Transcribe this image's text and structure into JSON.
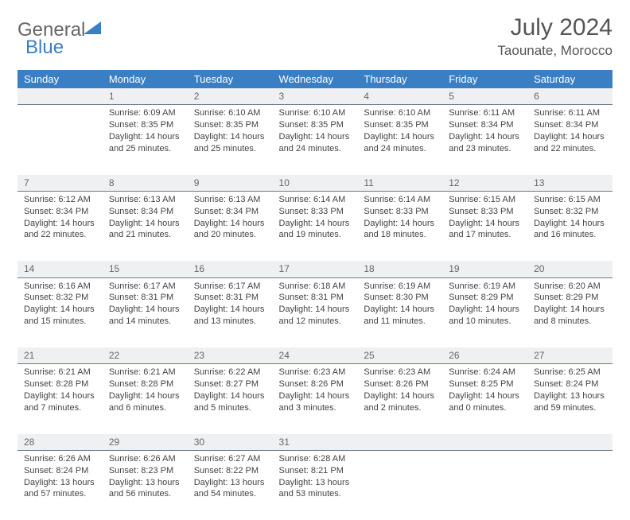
{
  "brand": {
    "part1": "General",
    "part2": "Blue",
    "accent_color": "#3a7fc4"
  },
  "title": "July 2024",
  "location": "Taounate, Morocco",
  "day_headers": [
    "Sunday",
    "Monday",
    "Tuesday",
    "Wednesday",
    "Thursday",
    "Friday",
    "Saturday"
  ],
  "colors": {
    "header_bg": "#3a7fc4",
    "header_text": "#ffffff",
    "daynum_bg": "#eef0f2",
    "daynum_border": "#6b7a8a",
    "text": "#444444",
    "page_bg": "#ffffff"
  },
  "typography": {
    "title_fontsize": 30,
    "location_fontsize": 17,
    "header_fontsize": 13,
    "daynum_fontsize": 12,
    "cell_fontsize": 11
  },
  "weeks": [
    [
      null,
      {
        "n": "1",
        "sunrise": "6:09 AM",
        "sunset": "8:35 PM",
        "daylight": "14 hours and 25 minutes."
      },
      {
        "n": "2",
        "sunrise": "6:10 AM",
        "sunset": "8:35 PM",
        "daylight": "14 hours and 25 minutes."
      },
      {
        "n": "3",
        "sunrise": "6:10 AM",
        "sunset": "8:35 PM",
        "daylight": "14 hours and 24 minutes."
      },
      {
        "n": "4",
        "sunrise": "6:10 AM",
        "sunset": "8:35 PM",
        "daylight": "14 hours and 24 minutes."
      },
      {
        "n": "5",
        "sunrise": "6:11 AM",
        "sunset": "8:34 PM",
        "daylight": "14 hours and 23 minutes."
      },
      {
        "n": "6",
        "sunrise": "6:11 AM",
        "sunset": "8:34 PM",
        "daylight": "14 hours and 22 minutes."
      }
    ],
    [
      {
        "n": "7",
        "sunrise": "6:12 AM",
        "sunset": "8:34 PM",
        "daylight": "14 hours and 22 minutes."
      },
      {
        "n": "8",
        "sunrise": "6:13 AM",
        "sunset": "8:34 PM",
        "daylight": "14 hours and 21 minutes."
      },
      {
        "n": "9",
        "sunrise": "6:13 AM",
        "sunset": "8:34 PM",
        "daylight": "14 hours and 20 minutes."
      },
      {
        "n": "10",
        "sunrise": "6:14 AM",
        "sunset": "8:33 PM",
        "daylight": "14 hours and 19 minutes."
      },
      {
        "n": "11",
        "sunrise": "6:14 AM",
        "sunset": "8:33 PM",
        "daylight": "14 hours and 18 minutes."
      },
      {
        "n": "12",
        "sunrise": "6:15 AM",
        "sunset": "8:33 PM",
        "daylight": "14 hours and 17 minutes."
      },
      {
        "n": "13",
        "sunrise": "6:15 AM",
        "sunset": "8:32 PM",
        "daylight": "14 hours and 16 minutes."
      }
    ],
    [
      {
        "n": "14",
        "sunrise": "6:16 AM",
        "sunset": "8:32 PM",
        "daylight": "14 hours and 15 minutes."
      },
      {
        "n": "15",
        "sunrise": "6:17 AM",
        "sunset": "8:31 PM",
        "daylight": "14 hours and 14 minutes."
      },
      {
        "n": "16",
        "sunrise": "6:17 AM",
        "sunset": "8:31 PM",
        "daylight": "14 hours and 13 minutes."
      },
      {
        "n": "17",
        "sunrise": "6:18 AM",
        "sunset": "8:31 PM",
        "daylight": "14 hours and 12 minutes."
      },
      {
        "n": "18",
        "sunrise": "6:19 AM",
        "sunset": "8:30 PM",
        "daylight": "14 hours and 11 minutes."
      },
      {
        "n": "19",
        "sunrise": "6:19 AM",
        "sunset": "8:29 PM",
        "daylight": "14 hours and 10 minutes."
      },
      {
        "n": "20",
        "sunrise": "6:20 AM",
        "sunset": "8:29 PM",
        "daylight": "14 hours and 8 minutes."
      }
    ],
    [
      {
        "n": "21",
        "sunrise": "6:21 AM",
        "sunset": "8:28 PM",
        "daylight": "14 hours and 7 minutes."
      },
      {
        "n": "22",
        "sunrise": "6:21 AM",
        "sunset": "8:28 PM",
        "daylight": "14 hours and 6 minutes."
      },
      {
        "n": "23",
        "sunrise": "6:22 AM",
        "sunset": "8:27 PM",
        "daylight": "14 hours and 5 minutes."
      },
      {
        "n": "24",
        "sunrise": "6:23 AM",
        "sunset": "8:26 PM",
        "daylight": "14 hours and 3 minutes."
      },
      {
        "n": "25",
        "sunrise": "6:23 AM",
        "sunset": "8:26 PM",
        "daylight": "14 hours and 2 minutes."
      },
      {
        "n": "26",
        "sunrise": "6:24 AM",
        "sunset": "8:25 PM",
        "daylight": "14 hours and 0 minutes."
      },
      {
        "n": "27",
        "sunrise": "6:25 AM",
        "sunset": "8:24 PM",
        "daylight": "13 hours and 59 minutes."
      }
    ],
    [
      {
        "n": "28",
        "sunrise": "6:26 AM",
        "sunset": "8:24 PM",
        "daylight": "13 hours and 57 minutes."
      },
      {
        "n": "29",
        "sunrise": "6:26 AM",
        "sunset": "8:23 PM",
        "daylight": "13 hours and 56 minutes."
      },
      {
        "n": "30",
        "sunrise": "6:27 AM",
        "sunset": "8:22 PM",
        "daylight": "13 hours and 54 minutes."
      },
      {
        "n": "31",
        "sunrise": "6:28 AM",
        "sunset": "8:21 PM",
        "daylight": "13 hours and 53 minutes."
      },
      null,
      null,
      null
    ]
  ]
}
